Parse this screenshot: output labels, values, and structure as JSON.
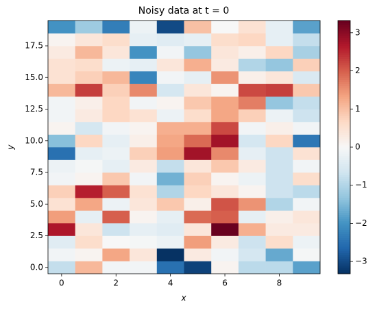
{
  "chart_data": {
    "type": "heatmap",
    "title": "Noisy data at t = 0",
    "xlabel": "x",
    "ylabel": "y",
    "colormap": "RdBu_r",
    "x": [
      0,
      1,
      2,
      3,
      4,
      5,
      6,
      7,
      8,
      9
    ],
    "y": [
      0,
      1,
      2,
      3,
      4,
      5,
      6,
      7,
      8,
      9,
      10,
      11,
      12,
      13,
      14,
      15,
      16,
      17,
      18,
      19
    ],
    "z": [
      [
        -0.8,
        1.1,
        -0.1,
        -0.1,
        -2.5,
        -3.1,
        0.1,
        -0.9,
        -0.9,
        -1.8
      ],
      [
        -0.1,
        0.1,
        1.3,
        0.4,
        -3.3,
        0.3,
        -0.1,
        -0.6,
        -1.7,
        -0.05
      ],
      [
        -0.4,
        0.6,
        0,
        -0.05,
        -0.2,
        1.4,
        0.3,
        -0.7,
        0.6,
        -0.2
      ],
      [
        2.7,
        0.4,
        -0.7,
        -0.3,
        -0.4,
        0.4,
        3.3,
        1.2,
        0.3,
        0.3
      ],
      [
        1.4,
        -0.3,
        2,
        0.1,
        -0.3,
        1.9,
        2,
        -0.3,
        0.2,
        0.4
      ],
      [
        0.5,
        1.3,
        -0.2,
        0.4,
        0.9,
        0.2,
        2.1,
        1.5,
        -1,
        -0.1
      ],
      [
        0.8,
        2.6,
        2,
        0.5,
        -1,
        0.7,
        0.4,
        0.1,
        -0.7,
        -0.9
      ],
      [
        -0.1,
        0.1,
        0.9,
        -0.1,
        -1.6,
        0.8,
        0.1,
        -0.2,
        -0.7,
        0.6
      ],
      [
        -0.2,
        -0.05,
        -0.3,
        0.3,
        -0.8,
        0.4,
        0.9,
        0.3,
        -0.7,
        -0.1
      ],
      [
        -2.5,
        -0.3,
        -0.2,
        0.8,
        1.4,
        2.8,
        1.6,
        -0.3,
        -0.7,
        0.5
      ],
      [
        -1.4,
        0.7,
        -0.3,
        0.2,
        1.3,
        1.9,
        2.8,
        -0.6,
        0.7,
        -2.4
      ],
      [
        0.1,
        -0.6,
        -0.1,
        0.1,
        1.2,
        1.2,
        2.2,
        -0.1,
        0.2,
        -0.1
      ],
      [
        -0.1,
        0.3,
        0.7,
        0.5,
        -0.2,
        0.6,
        1.3,
        0.8,
        -0.2,
        -0.7
      ],
      [
        -0.1,
        0.2,
        0.7,
        -0.1,
        0.1,
        0.9,
        1.3,
        1.7,
        -1.3,
        -0.8
      ],
      [
        1.1,
        2.3,
        0.8,
        1.6,
        -0.6,
        0.4,
        0.1,
        2.2,
        2.3,
        0.9
      ],
      [
        0.5,
        0.8,
        1.1,
        -2.2,
        -0.1,
        -0.3,
        1.5,
        0.2,
        0.4,
        -0.5
      ],
      [
        0.5,
        0.6,
        -0.2,
        -0.3,
        0.4,
        1.2,
        0.3,
        -1,
        -1.3,
        0.8
      ],
      [
        0.3,
        1.1,
        0.4,
        -2,
        -0.1,
        -1.3,
        0.4,
        0.2,
        0.7,
        -1.1
      ],
      [
        0.1,
        0.4,
        0.6,
        -0.3,
        -0.4,
        -0.3,
        0.6,
        0.7,
        -0.3,
        -0.8
      ],
      [
        -2,
        -1.2,
        -2.3,
        -0.2,
        -3,
        1,
        0,
        0.5,
        -0.3,
        -1.8
      ]
    ],
    "xlim": [
      -0.5,
      9.5
    ],
    "ylim": [
      -0.5,
      19.5
    ],
    "zlim": [
      -3.32,
      3.32
    ],
    "xticks": [
      0,
      2,
      4,
      6,
      8
    ],
    "yticks": [
      {
        "value": 0,
        "label": "0.0"
      },
      2.5,
      {
        "value": 5,
        "label": "5.0"
      },
      7.5,
      {
        "value": 10,
        "label": "10.0"
      },
      12.5,
      {
        "value": 15,
        "label": "15.0"
      },
      17.5
    ],
    "zticks": [
      {
        "value": -3,
        "label": "−3"
      },
      {
        "value": -2,
        "label": "−2"
      },
      {
        "value": -1,
        "label": "−1"
      },
      0,
      1,
      2,
      3
    ]
  }
}
